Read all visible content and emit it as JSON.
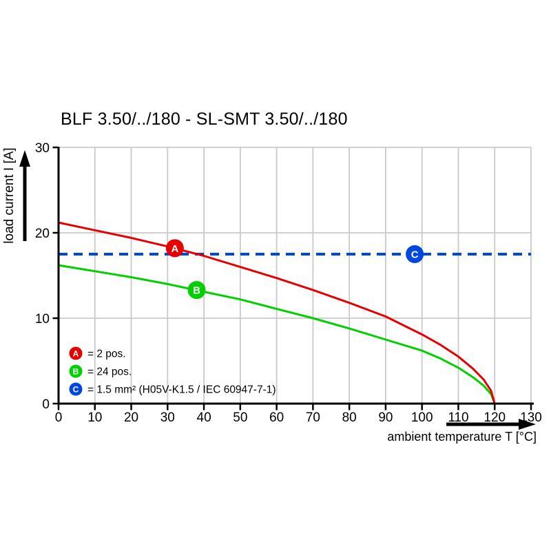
{
  "title": "BLF 3.50/../180 - SL-SMT 3.50/../180",
  "colors": {
    "background": "#ffffff",
    "grid": "#c9c9c9",
    "axis": "#000000",
    "text": "#000000",
    "red": "#e60000",
    "green": "#00cf00",
    "blue": "#0047e0"
  },
  "chart_data": {
    "type": "line",
    "title": "BLF 3.50/../180 - SL-SMT 3.50/../180",
    "xlabel": "ambient temperature T [°C]",
    "ylabel": "load current I [A]",
    "xlim": [
      0,
      130
    ],
    "ylim": [
      0,
      30
    ],
    "x_ticks": [
      0,
      10,
      20,
      30,
      40,
      50,
      60,
      70,
      80,
      90,
      100,
      110,
      120,
      130
    ],
    "y_ticks": [
      0,
      10,
      20,
      30
    ],
    "grid": true,
    "series": [
      {
        "name": "2 pos.",
        "marker_label": "A",
        "color": "#e60000",
        "points": [
          [
            0,
            21.2
          ],
          [
            10,
            20.3
          ],
          [
            20,
            19.4
          ],
          [
            30,
            18.4
          ],
          [
            40,
            17.3
          ],
          [
            50,
            16.0
          ],
          [
            60,
            14.7
          ],
          [
            70,
            13.3
          ],
          [
            80,
            11.8
          ],
          [
            90,
            10.2
          ],
          [
            100,
            8.1
          ],
          [
            105,
            6.9
          ],
          [
            110,
            5.5
          ],
          [
            114,
            4.1
          ],
          [
            117,
            2.8
          ],
          [
            119,
            1.5
          ],
          [
            120,
            0
          ]
        ],
        "marker_at": [
          32,
          18.2
        ]
      },
      {
        "name": "24 pos.",
        "marker_label": "B",
        "color": "#00cf00",
        "points": [
          [
            0,
            16.2
          ],
          [
            10,
            15.5
          ],
          [
            20,
            14.8
          ],
          [
            30,
            14.0
          ],
          [
            40,
            13.1
          ],
          [
            50,
            12.2
          ],
          [
            60,
            11.1
          ],
          [
            70,
            10.0
          ],
          [
            80,
            8.8
          ],
          [
            90,
            7.5
          ],
          [
            100,
            6.2
          ],
          [
            105,
            5.3
          ],
          [
            110,
            4.2
          ],
          [
            114,
            3.1
          ],
          [
            117,
            2.1
          ],
          [
            119,
            1.1
          ],
          [
            120,
            0
          ]
        ],
        "marker_at": [
          38,
          13.3
        ]
      }
    ],
    "reference_line": {
      "name": "1.5 mm² (H05V-K1.5 / IEC 60947-7-1)",
      "marker_label": "C",
      "color": "#0047e0",
      "value": 17.5,
      "style": "dashed",
      "marker_at": [
        98,
        17.5
      ]
    },
    "legend": {
      "position": "bottom-left-inside",
      "items": [
        {
          "marker_label": "A",
          "color": "#e60000",
          "label": "= 2 pos."
        },
        {
          "marker_label": "B",
          "color": "#00cf00",
          "label": "= 24 pos."
        },
        {
          "marker_label": "C",
          "color": "#0047e0",
          "label": "= 1.5 mm² (H05V-K1.5 / IEC 60947-7-1)"
        }
      ]
    }
  }
}
